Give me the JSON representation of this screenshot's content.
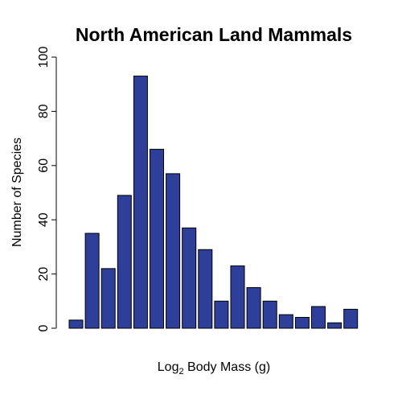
{
  "chart_data": {
    "type": "bar",
    "title": "North American Land Mammals",
    "xlabel": {
      "prefix": "Log",
      "subscript": "2",
      "suffix": " Body Mass (g)"
    },
    "ylabel": "Number of Species",
    "ylim": [
      0,
      100
    ],
    "yticks": [
      0,
      20,
      40,
      60,
      80,
      100
    ],
    "grid": false,
    "legend": "none",
    "bar_color": "#2e3f99",
    "bar_edge_color": "#000000",
    "values": [
      3,
      35,
      22,
      49,
      93,
      66,
      57,
      37,
      29,
      10,
      23,
      15,
      10,
      5,
      4,
      8,
      2,
      7
    ]
  }
}
